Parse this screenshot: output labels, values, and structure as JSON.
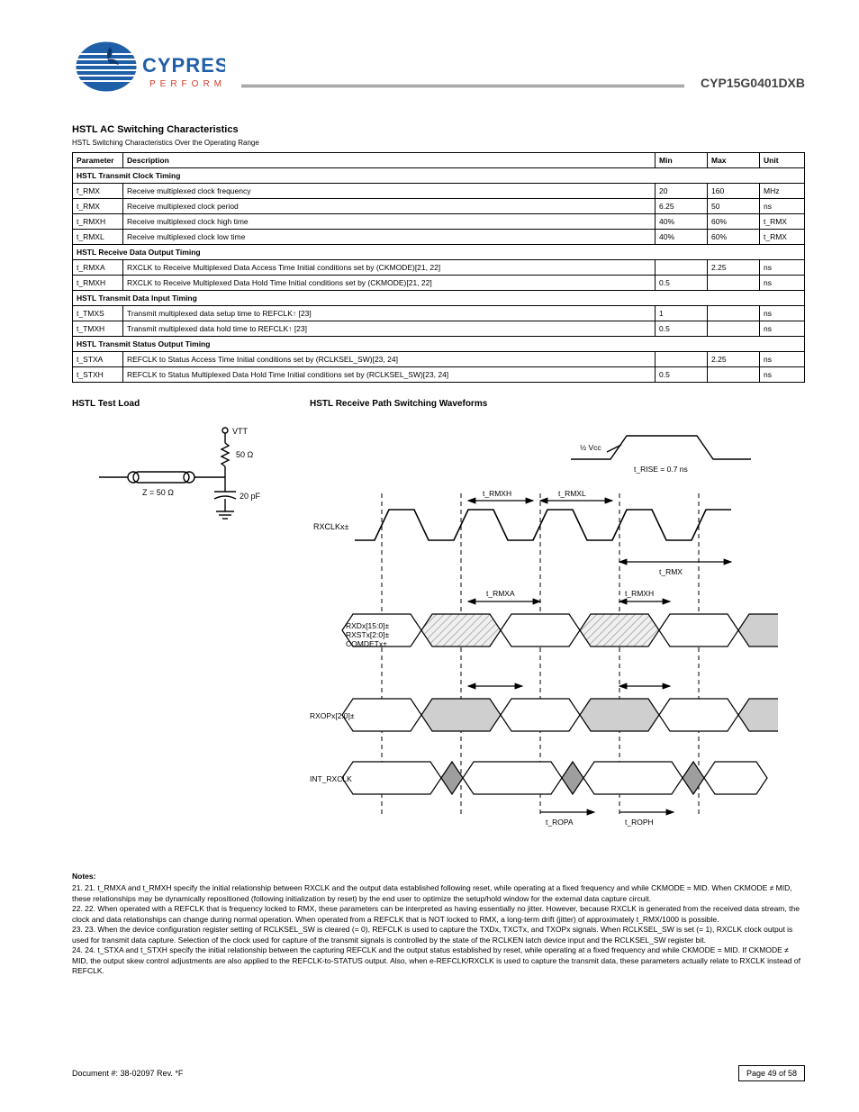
{
  "part_number": "CYP15G0401DXB",
  "section_title": "HSTL AC Switching Characteristics",
  "section_sub": "HSTL Switching Characteristics Over the Operating Range",
  "columns": [
    "Parameter",
    "Description",
    "Min",
    "Max",
    "Unit"
  ],
  "rows": [
    {
      "section": "HSTL Transmit Clock Timing"
    },
    {
      "p": "f_RMX",
      "d": "Receive multiplexed clock frequency",
      "min": "20",
      "max": "160",
      "u": "MHz"
    },
    {
      "p": "t_RMX",
      "d": "Receive multiplexed clock period",
      "min": "6.25",
      "max": "50",
      "u": "ns"
    },
    {
      "p": "t_RMXH",
      "d": "Receive multiplexed clock high time",
      "min": "40%",
      "max": "60%",
      "u": "t_RMX"
    },
    {
      "p": "t_RMXL",
      "d": "Receive multiplexed clock low time",
      "min": "40%",
      "max": "60%",
      "u": "t_RMX"
    },
    {
      "section": "HSTL Receive Data Output Timing"
    },
    {
      "p": "t_RMXA",
      "d": "RXCLK to Receive Multiplexed Data Access Time Initial conditions set by (CKMODE)[21, 22]",
      "min": "",
      "max": "2.25",
      "u": "ns"
    },
    {
      "p": "t_RMXH",
      "d": "RXCLK to Receive Multiplexed Data Hold Time Initial conditions set by (CKMODE)[21, 22]",
      "min": "0.5",
      "max": "",
      "u": "ns"
    },
    {
      "section": "HSTL Transmit Data Input Timing"
    },
    {
      "p": "t_TMXS",
      "d": "Transmit multiplexed data setup time to REFCLK↑ [23]",
      "min": "1",
      "max": "",
      "u": "ns"
    },
    {
      "p": "t_TMXH",
      "d": "Transmit multiplexed data hold time to REFCLK↑ [23]",
      "min": "0.5",
      "max": "",
      "u": "ns"
    },
    {
      "section": "HSTL Transmit Status Output Timing"
    },
    {
      "p": "t_STXA",
      "d": "REFCLK to Status Access Time Initial conditions set by (RCLKSEL_SW)[23, 24]",
      "min": "",
      "max": "2.25",
      "u": "ns"
    },
    {
      "p": "t_STXH",
      "d": "REFCLK to Status Multiplexed Data Hold Time Initial conditions set by (RCLKSEL_SW)[23, 24]",
      "min": "0.5",
      "max": "",
      "u": "ns"
    }
  ],
  "test_load_title": "HSTL Test Load",
  "test_load": {
    "vtt": "VTT",
    "r_term": "50 Ω",
    "z_line": "Z = 50 Ω",
    "cap": "20 pF",
    "line_colors": {
      "wire": "#000000",
      "component": "#000000"
    }
  },
  "timing_title": "HSTL Receive Path Switching Waveforms",
  "timing": {
    "clock_label": "RXCLKx±",
    "data_label": "RXDx[15:0]±\nRXSTx[2:0]±\nCOMDETx±",
    "data2_label": "RXOPx[2:0]±",
    "refclk_label": "INT_RXCLK",
    "t_high": "t_RMXH",
    "t_low": "t_RMXL",
    "t_period": "t_RMX",
    "t_access": "t_RMXA",
    "t_hold": "t_RMXH",
    "t_op_a": "t_ROPA",
    "t_op_h": "t_ROPH",
    "halfvcc": "½ Vcc",
    "trise": "t_RISE = 0.7 ns",
    "colors": {
      "stroke": "#000000",
      "fill_hatched": "#e6e6e6",
      "fill_grey": "#cfcfcf",
      "fill_dark": "#9e9e9e",
      "dash": "#000000"
    }
  },
  "footnotes_head": "Notes:",
  "footnotes": [
    "21. t_RMXA and t_RMXH specify the initial relationship between RXCLK and the output data established following reset, while operating at a fixed frequency and while CKMODE = MID. When CKMODE ≠ MID, these relationships may be dynamically repositioned (following initialization by reset) by the end user to optimize the setup/hold window for the external data capture circuit.",
    "22. When operated with a REFCLK that is frequency locked to RMX, these parameters can be interpreted as having essentially no jitter. However, because RXCLK is generated from the received data stream, the clock and data relationships can change during normal operation. When operated from a REFCLK that is NOT locked to RMX, a long-term drift (jitter) of approximately t_RMX/1000 is possible.",
    "23. When the device configuration register setting of RCLKSEL_SW is cleared (= 0), REFCLK is used to capture the TXDx, TXCTx, and TXOPx signals. When RCLKSEL_SW is set (= 1), RXCLK clock output is used for transmit data capture. Selection of the clock used for capture of the transmit signals is controlled by the state of the RCLKEN latch device input and the RCLKSEL_SW register bit.",
    "24. t_STXA and t_STXH specify the initial relationship between the capturing REFCLK and the output status established by reset, while operating at a fixed frequency and while CKMODE = MID. If CKMODE ≠ MID, the output skew control adjustments are also applied to the REFCLK-to-STATUS output. Also, when e-REFCLK/RXCLK is used to capture the transmit data, these parameters actually relate to RXCLK instead of REFCLK."
  ],
  "footer": {
    "doc": "Document #: 38-02097 Rev. *F",
    "page_label": "Page 49 of 58"
  }
}
